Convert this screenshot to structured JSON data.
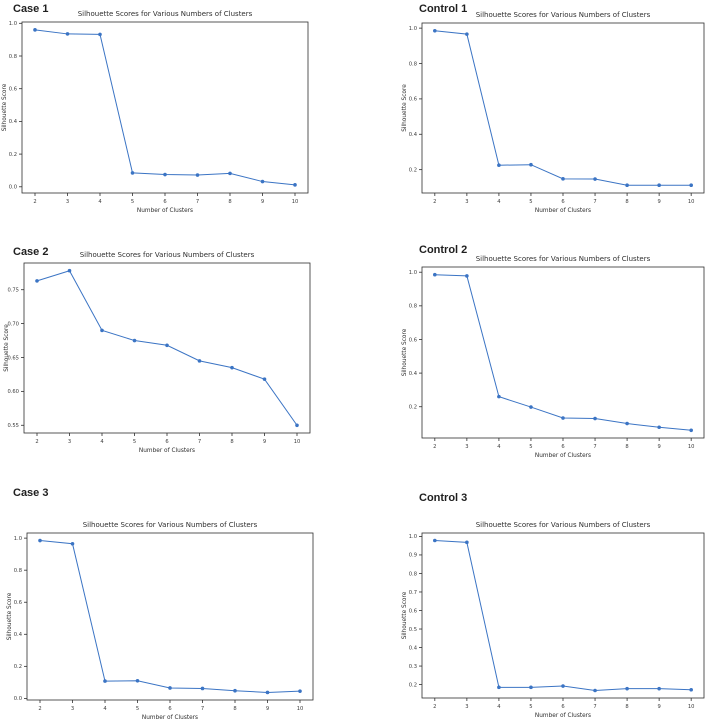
{
  "page": {
    "background": "#ffffff",
    "accent_color": "#3b74c4",
    "frame_color": "#2e2e2e",
    "text_color": "#3c3c3c"
  },
  "chart_data": [
    {
      "id": "case-1",
      "heading": "Case 1",
      "type": "line",
      "title": "Silhouette Scores for Various Numbers of Clusters",
      "xlabel": "Number of Clusters",
      "ylabel": "Silhouette Score",
      "x": [
        2,
        3,
        4,
        5,
        6,
        7,
        8,
        9,
        10
      ],
      "y": [
        0.96,
        0.935,
        0.932,
        0.085,
        0.075,
        0.072,
        0.082,
        0.032,
        0.012
      ],
      "xticks": [
        2,
        3,
        4,
        5,
        6,
        7,
        8,
        9,
        10
      ],
      "yticks": [
        0.0,
        0.2,
        0.4,
        0.6,
        0.8,
        1.0
      ],
      "ytick_labels": [
        "0.0",
        "0.2",
        "0.4",
        "0.6",
        "0.8",
        "1.0"
      ],
      "xlim": [
        1.6,
        10.4
      ],
      "ylim": [
        -0.038,
        1.008
      ],
      "grid": false,
      "legend": null,
      "line_color": "#3b74c4",
      "marker": "o"
    },
    {
      "id": "control-1",
      "heading": "Control 1",
      "type": "line",
      "title": "Silhouette Scores for Various Numbers of Clusters",
      "xlabel": "Number of Clusters",
      "ylabel": "Silhouette Score",
      "x": [
        2,
        3,
        4,
        5,
        6,
        7,
        8,
        9,
        10
      ],
      "y": [
        0.985,
        0.966,
        0.225,
        0.228,
        0.148,
        0.147,
        0.112,
        0.112,
        0.112
      ],
      "xticks": [
        2,
        3,
        4,
        5,
        6,
        7,
        8,
        9,
        10
      ],
      "yticks": [
        0.2,
        0.4,
        0.6,
        0.8,
        1.0
      ],
      "ytick_labels": [
        "0.2",
        "0.4",
        "0.6",
        "0.8",
        "1.0"
      ],
      "xlim": [
        1.6,
        10.4
      ],
      "ylim": [
        0.068,
        1.029
      ],
      "grid": false,
      "legend": null,
      "line_color": "#3b74c4",
      "marker": "o"
    },
    {
      "id": "case-2",
      "heading": "Case 2",
      "type": "line",
      "title": "Silhouette Scores for Various Numbers of Clusters",
      "xlabel": "Number of Clusters",
      "ylabel": "Silhouette Score",
      "x": [
        2,
        3,
        4,
        5,
        6,
        7,
        8,
        9,
        10
      ],
      "y": [
        0.763,
        0.778,
        0.69,
        0.675,
        0.668,
        0.645,
        0.635,
        0.618,
        0.55
      ],
      "xticks": [
        2,
        3,
        4,
        5,
        6,
        7,
        8,
        9,
        10
      ],
      "yticks": [
        0.55,
        0.6,
        0.65,
        0.7,
        0.75
      ],
      "ytick_labels": [
        "0.55",
        "0.60",
        "0.65",
        "0.70",
        "0.75"
      ],
      "xlim": [
        1.6,
        10.4
      ],
      "ylim": [
        0.5386,
        0.7894
      ],
      "grid": false,
      "legend": null,
      "line_color": "#3b74c4",
      "marker": "o"
    },
    {
      "id": "control-2",
      "heading": "Control 2",
      "type": "line",
      "title": "Silhouette Scores for Various Numbers of Clusters",
      "xlabel": "Number of Clusters",
      "ylabel": "Silhouette Score",
      "x": [
        2,
        3,
        4,
        5,
        6,
        7,
        8,
        9,
        10
      ],
      "y": [
        0.985,
        0.978,
        0.26,
        0.198,
        0.133,
        0.13,
        0.1,
        0.078,
        0.06
      ],
      "xticks": [
        2,
        3,
        4,
        5,
        6,
        7,
        8,
        9,
        10
      ],
      "yticks": [
        0.2,
        0.4,
        0.6,
        0.8,
        1.0
      ],
      "ytick_labels": [
        "0.2",
        "0.4",
        "0.6",
        "0.8",
        "1.0"
      ],
      "xlim": [
        1.6,
        10.4
      ],
      "ylim": [
        0.014,
        1.031
      ],
      "grid": false,
      "legend": null,
      "line_color": "#3b74c4",
      "marker": "o"
    },
    {
      "id": "case-3",
      "heading": "Case 3",
      "type": "line",
      "title": "Silhouette Scores for Various Numbers of Clusters",
      "xlabel": "Number of Clusters",
      "ylabel": "Silhouette Score",
      "x": [
        2,
        3,
        4,
        5,
        6,
        7,
        8,
        9,
        10
      ],
      "y": [
        0.985,
        0.965,
        0.108,
        0.11,
        0.065,
        0.062,
        0.048,
        0.037,
        0.045
      ],
      "xticks": [
        2,
        3,
        4,
        5,
        6,
        7,
        8,
        9,
        10
      ],
      "yticks": [
        0.0,
        0.2,
        0.4,
        0.6,
        0.8,
        1.0
      ],
      "ytick_labels": [
        "0.0",
        "0.2",
        "0.4",
        "0.6",
        "0.8",
        "1.0"
      ],
      "xlim": [
        1.6,
        10.4
      ],
      "ylim": [
        -0.01,
        1.032
      ],
      "grid": false,
      "legend": null,
      "line_color": "#3b74c4",
      "marker": "o"
    },
    {
      "id": "control-3",
      "heading": "Control 3",
      "type": "line",
      "title": "Silhouette Scores for Various Numbers of Clusters",
      "xlabel": "Number of Clusters",
      "ylabel": "Silhouette Score",
      "x": [
        2,
        3,
        4,
        5,
        6,
        7,
        8,
        9,
        10
      ],
      "y": [
        0.978,
        0.968,
        0.185,
        0.185,
        0.192,
        0.168,
        0.178,
        0.178,
        0.172
      ],
      "xticks": [
        2,
        3,
        4,
        5,
        6,
        7,
        8,
        9,
        10
      ],
      "yticks": [
        0.2,
        0.3,
        0.4,
        0.5,
        0.6,
        0.7,
        0.8,
        0.9,
        1.0
      ],
      "ytick_labels": [
        "0.2",
        "0.3",
        "0.4",
        "0.5",
        "0.6",
        "0.7",
        "0.8",
        "0.9",
        "1.0"
      ],
      "xlim": [
        1.6,
        10.4
      ],
      "ylim": [
        0.1275,
        1.0185
      ],
      "grid": false,
      "legend": null,
      "line_color": "#3b74c4",
      "marker": "o"
    }
  ]
}
